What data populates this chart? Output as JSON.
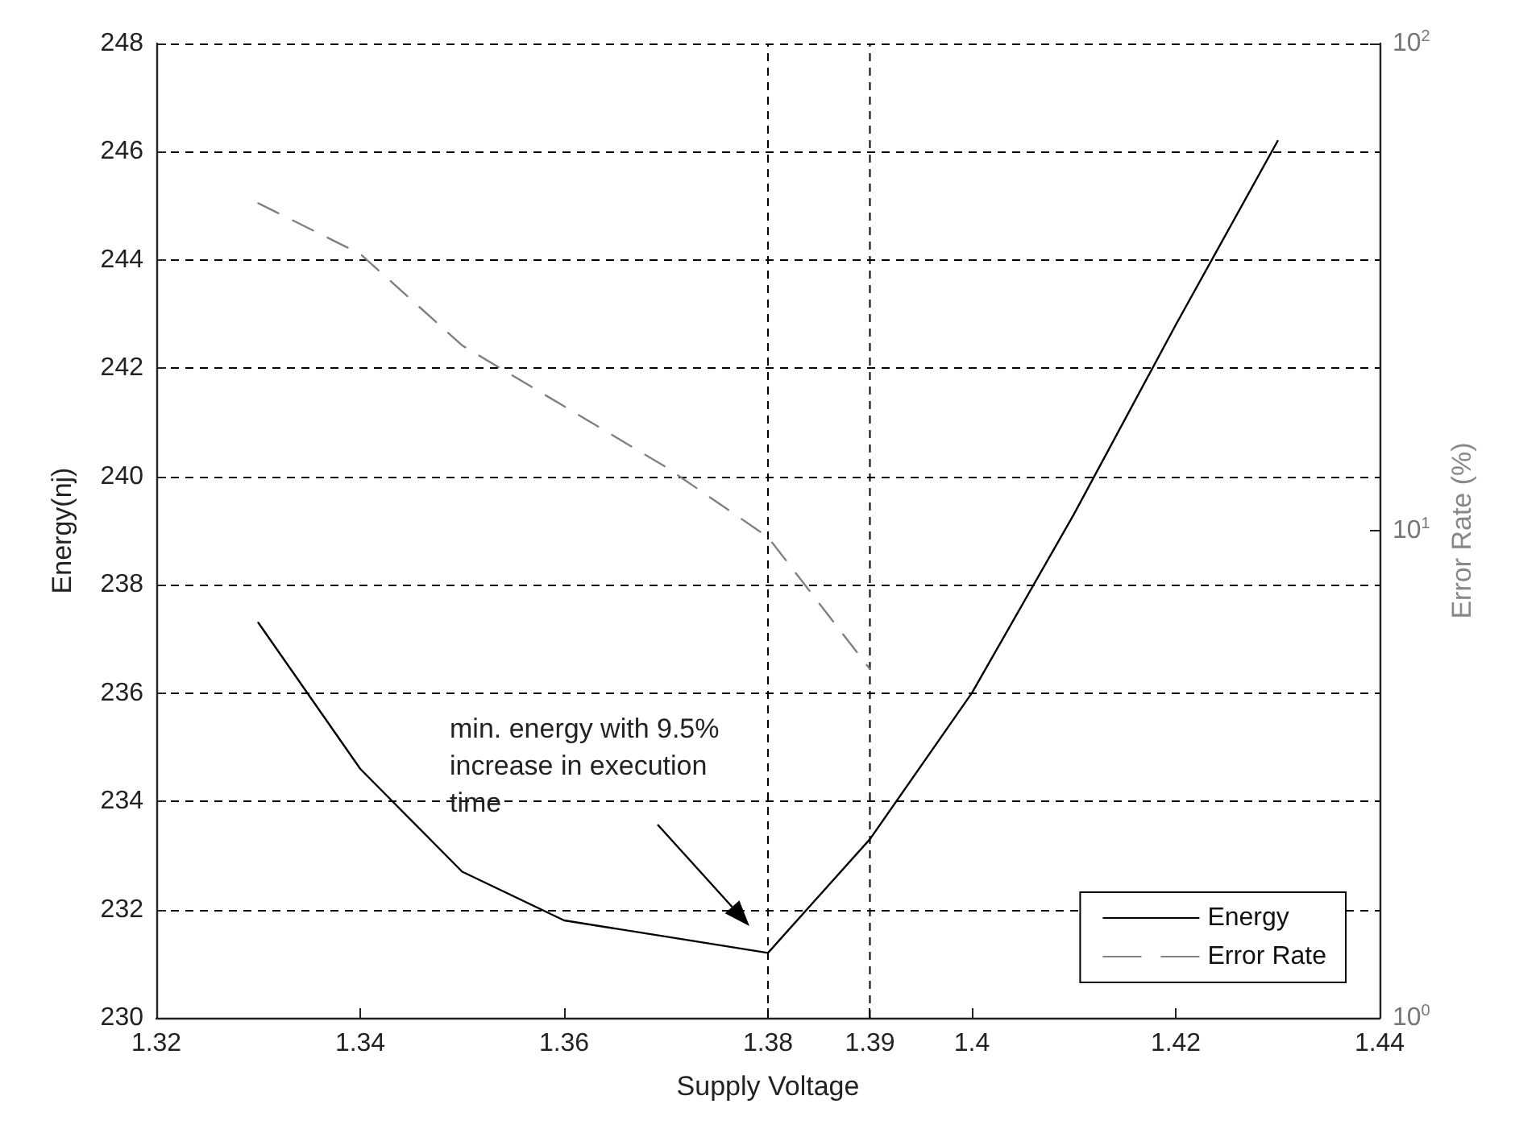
{
  "chart_data": {
    "type": "line",
    "xlabel": "Supply Voltage",
    "ylabel": "Energy(nj)",
    "y2label": "Error Rate (%)",
    "x": [
      1.33,
      1.34,
      1.35,
      1.36,
      1.37,
      1.38,
      1.39,
      1.4,
      1.41,
      1.42,
      1.43
    ],
    "series": [
      {
        "name": "Energy",
        "color": "#000000",
        "line_style": "solid",
        "values": [
          237.3,
          234.6,
          232.7,
          231.8,
          231.5,
          231.2,
          233.3,
          236.0,
          239.3,
          242.8,
          246.2
        ]
      },
      {
        "name": "Error Rate",
        "color": "#808080",
        "line_style": "dashed",
        "axis": "y2",
        "x": [
          1.33,
          1.34,
          1.35,
          1.36,
          1.37,
          1.38,
          1.39
        ],
        "values": [
          47,
          37,
          24,
          18,
          13.5,
          9.7,
          5.2
        ]
      }
    ],
    "xlim": [
      1.32,
      1.44
    ],
    "xticks": [
      1.32,
      1.34,
      1.36,
      1.38,
      1.39,
      1.4,
      1.42,
      1.44
    ],
    "ylim": [
      230,
      248
    ],
    "yticks": [
      230,
      232,
      234,
      236,
      238,
      240,
      242,
      244,
      246,
      248
    ],
    "y2lim": [
      1,
      100
    ],
    "y2ticks": [
      {
        "value": 1,
        "label": "10$^{0}$"
      },
      {
        "value": 10,
        "label": "10$^{1}$"
      },
      {
        "value": 100,
        "label": "10$^{2}$"
      }
    ],
    "log": "y2",
    "grid": "y",
    "legend": "bottom right",
    "marker": "none",
    "ref_lines": [
      {
        "axis": "x",
        "value": 1.38,
        "line_style": "dashed"
      },
      {
        "axis": "x",
        "value": 1.39,
        "line_style": "dashed"
      }
    ],
    "annotations": [
      "min. energy with 9.5% increase in execution time"
    ]
  }
}
